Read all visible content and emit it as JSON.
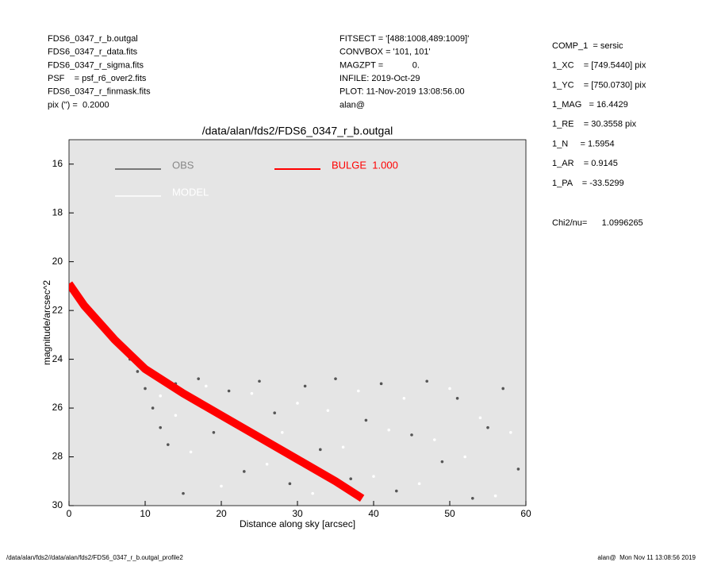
{
  "header": {
    "left": [
      "FDS6_0347_r_b.outgal",
      "FDS6_0347_r_data.fits",
      "FDS6_0347_r_sigma.fits",
      "PSF    = psf_r6_over2.fits",
      "FDS6_0347_r_finmask.fits",
      "pix (\") =  0.2000"
    ],
    "middle": [
      "FITSECT = '[488:1008,489:1009]'",
      "CONVBOX = '101, 101'",
      "MAGZPT =            0.",
      "INFILE: 2019-Oct-29",
      "PLOT: 11-Nov-2019 13:08:56.00",
      "alan@"
    ],
    "right": [
      "COMP_1  = sersic",
      "1_XC    = [749.5440] pix",
      "1_YC    = [750.0730] pix",
      "1_MAG   = 16.4429",
      "1_RE    = 30.3558 pix",
      "1_N     = 1.5954",
      "1_AR    = 0.9145",
      "1_PA    = -33.5299"
    ],
    "chi2": "Chi2/nu=      1.0996265"
  },
  "footer": {
    "left": "/data/alan/fds2//data/alan/fds2/FDS6_0347_r_b.outgal_profile2",
    "right": "alan@  Mon Nov 11 13:08:56 2019"
  },
  "chart_data": {
    "type": "scatter",
    "title": "/data/alan/fds2/FDS6_0347_r_b.outgal",
    "xlabel": "Distance along sky [arcsec]",
    "ylabel": "magnitude/arcsec^2",
    "xlim": [
      0,
      60
    ],
    "xticks": [
      0,
      10,
      20,
      30,
      40,
      50,
      60
    ],
    "ylim": [
      30,
      15
    ],
    "yticks": [
      16,
      18,
      20,
      22,
      24,
      26,
      28,
      30
    ],
    "background": "#e5e5e5",
    "legend": "upper left",
    "series": [
      {
        "name": "OBS",
        "color": "#555555",
        "mode": "points",
        "x": [
          1,
          2,
          3,
          4,
          5,
          6,
          7,
          8,
          9,
          10,
          11,
          12,
          13,
          14,
          15,
          17,
          19,
          21,
          23,
          25,
          27,
          29,
          31,
          33,
          35,
          37,
          39,
          41,
          43,
          45,
          47,
          49,
          51,
          53,
          55,
          57,
          59
        ],
        "values": [
          21.2,
          21.7,
          22.2,
          22.6,
          22.9,
          23.2,
          23.6,
          24.0,
          24.5,
          25.2,
          26.0,
          26.8,
          27.5,
          25.0,
          29.5,
          24.8,
          27.0,
          25.3,
          28.6,
          24.9,
          26.2,
          29.1,
          25.1,
          27.7,
          24.8,
          28.9,
          26.5,
          25.0,
          29.4,
          27.1,
          24.9,
          28.2,
          25.6,
          29.7,
          26.8,
          25.2,
          28.5
        ]
      },
      {
        "name": "MODEL",
        "color": "#ffffff",
        "mode": "points",
        "x": [
          12,
          14,
          16,
          18,
          20,
          22,
          24,
          26,
          28,
          30,
          32,
          34,
          36,
          38,
          40,
          42,
          44,
          46,
          48,
          50,
          52,
          54,
          56,
          58
        ],
        "values": [
          25.5,
          26.3,
          27.8,
          25.1,
          29.2,
          26.6,
          25.4,
          28.3,
          27.0,
          25.8,
          29.5,
          26.1,
          27.6,
          25.3,
          28.8,
          26.9,
          25.6,
          29.1,
          27.3,
          25.2,
          28.0,
          26.4,
          29.6,
          27.0
        ]
      },
      {
        "name": "BULGE  1.000",
        "color": "#ff0000",
        "mode": "band",
        "x": [
          0,
          2,
          4,
          6,
          8,
          10,
          15,
          20,
          25,
          30,
          35,
          38.5
        ],
        "values": [
          20.9,
          21.8,
          22.5,
          23.2,
          23.8,
          24.4,
          25.4,
          26.3,
          27.2,
          28.1,
          29.0,
          29.7
        ]
      }
    ]
  }
}
